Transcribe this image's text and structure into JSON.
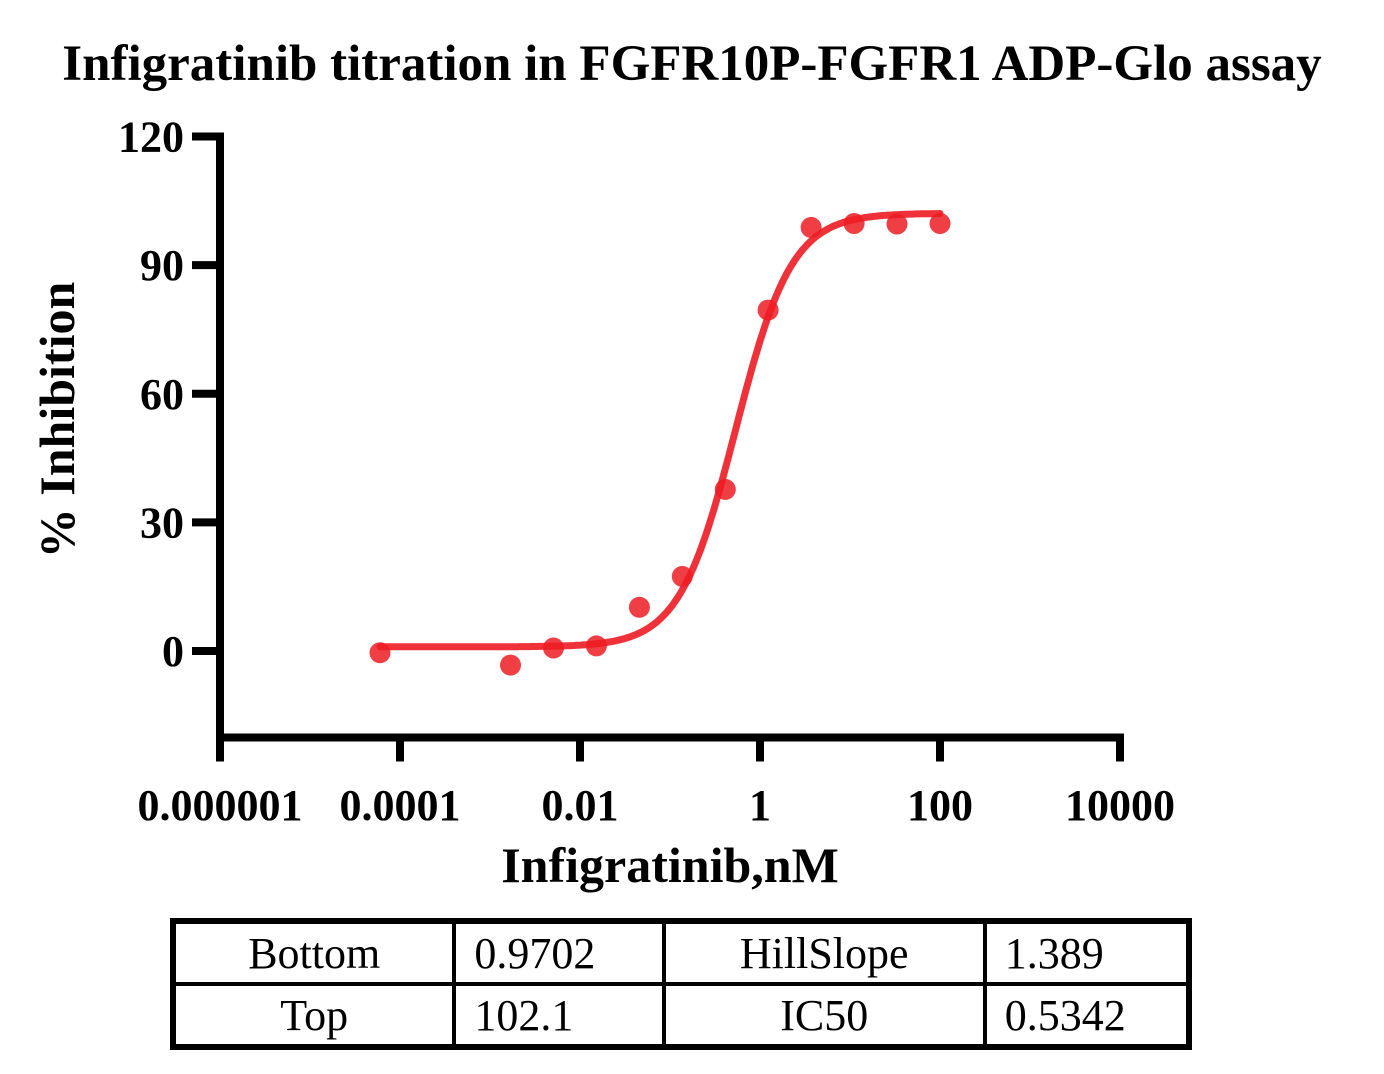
{
  "title": "Infigratinib titration in FGFR10P-FGFR1 ADP-Glo assay",
  "chart_data": {
    "type": "scatter",
    "title": "Infigratinib titration in FGFR10P-FGFR1 ADP-Glo assay",
    "xlabel": "Infigratinib,nM",
    "ylabel": "% Inhibition",
    "x_scale": "log10",
    "x_tick_labels": [
      "0.000001",
      "0.0001",
      "0.01",
      "1",
      "100",
      "10000"
    ],
    "x_tick_values": [
      1e-06,
      0.0001,
      0.01,
      1,
      100,
      10000
    ],
    "y_ticks": [
      0,
      30,
      60,
      90,
      120
    ],
    "y_axis_range": [
      0,
      120
    ],
    "grid": false,
    "legend": "none",
    "marker_color": "#ED1C24",
    "line_color": "#ED1C24",
    "series": [
      {
        "name": "Infigratinib",
        "marker": "circle",
        "points": [
          {
            "x": 6e-05,
            "y": -0.4
          },
          {
            "x": 0.00169,
            "y": -3.3
          },
          {
            "x": 0.00508,
            "y": 0.7
          },
          {
            "x": 0.0152,
            "y": 1.2
          },
          {
            "x": 0.0457,
            "y": 10.2
          },
          {
            "x": 0.137,
            "y": 17.4
          },
          {
            "x": 0.412,
            "y": 37.7
          },
          {
            "x": 1.23,
            "y": 79.5
          },
          {
            "x": 3.7,
            "y": 98.8
          },
          {
            "x": 11.1,
            "y": 99.7
          },
          {
            "x": 33.3,
            "y": 99.6
          },
          {
            "x": 100,
            "y": 99.7
          }
        ]
      }
    ],
    "fit_curve": {
      "model": "four-parameter-logistic",
      "bottom": 0.9702,
      "top": 102.1,
      "hillslope": 1.389,
      "ic50": 0.5342,
      "x_start": 6e-05,
      "x_end": 100
    }
  },
  "fit_table": {
    "rows": [
      [
        "Bottom",
        "0.9702",
        "HillSlope",
        "1.389"
      ],
      [
        "Top",
        "102.1",
        "IC50",
        "0.5342"
      ]
    ]
  }
}
